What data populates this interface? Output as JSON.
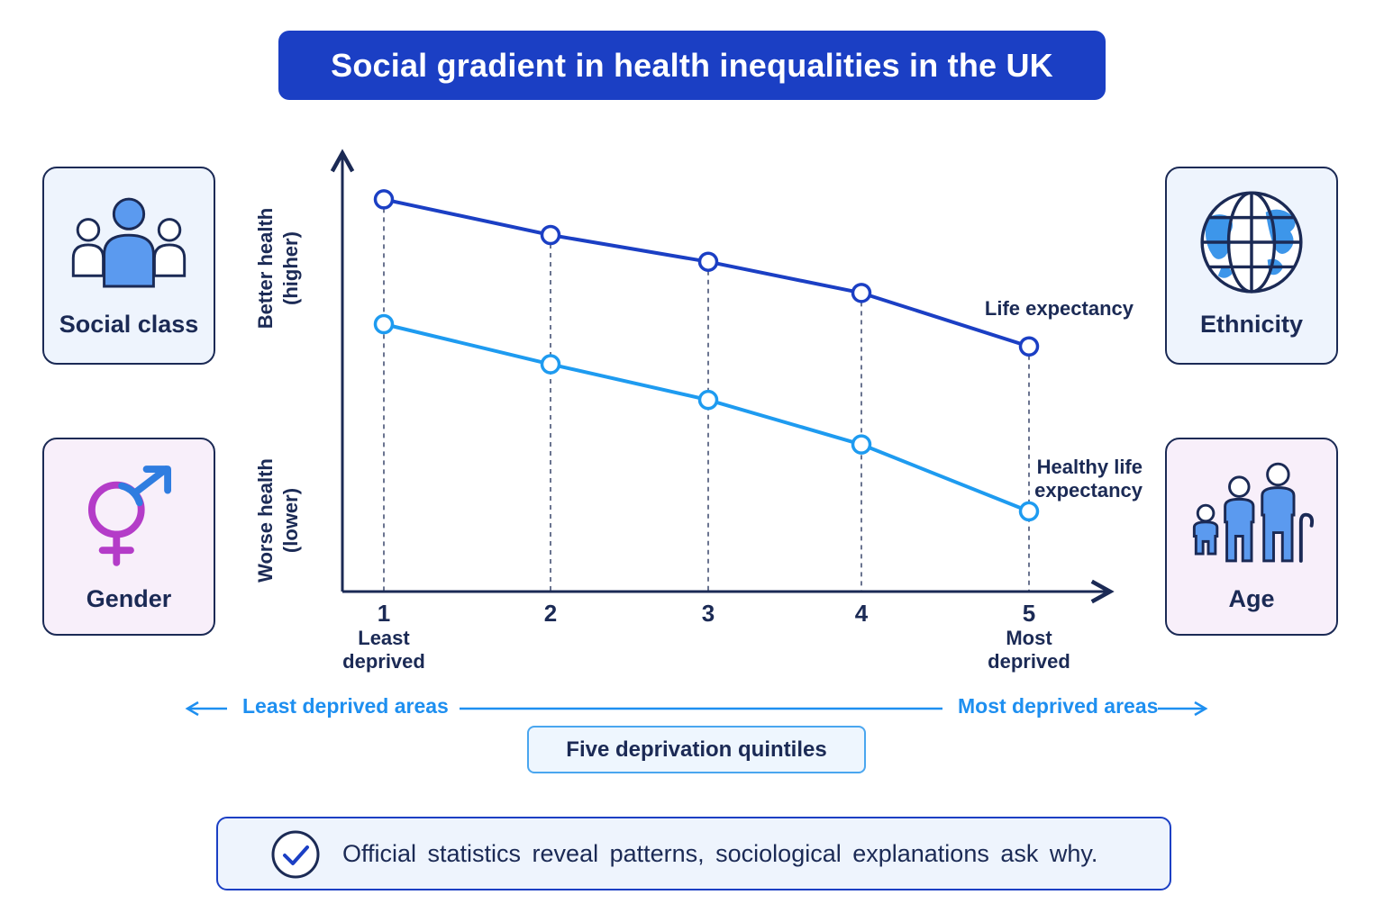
{
  "title": "Social gradient in health inequalities in the UK",
  "factors": {
    "social_class": "Social class",
    "ethnicity": "Ethnicity",
    "gender": "Gender",
    "age": "Age"
  },
  "chart_data": {
    "type": "line",
    "x": [
      1,
      2,
      3,
      4,
      5
    ],
    "tick_labels": [
      "1",
      "2",
      "3",
      "4",
      "5"
    ],
    "tick_sublabels": {
      "1": [
        "Least",
        "deprived"
      ],
      "5": [
        "Most",
        "deprived"
      ]
    },
    "y_top_label": [
      "Better health",
      "(higher)"
    ],
    "y_bottom_label": [
      "Worse health",
      "(lower)"
    ],
    "ylim": [
      0,
      100
    ],
    "grid": "vertical dashed lines at each quintile",
    "series": [
      {
        "name": "Life expectancy",
        "values": [
          88,
          80,
          74,
          67,
          55
        ],
        "color": "#1b3fc4"
      },
      {
        "name": "Healthy life expectancy",
        "values": [
          60,
          51,
          43,
          33,
          18
        ],
        "color": "#1e9bf0"
      }
    ]
  },
  "axis_footer": {
    "left": "Least deprived areas",
    "right": "Most deprived areas",
    "box": "Five deprivation quintiles"
  },
  "conclusion": "Official statistics reveal patterns, sociological explanations ask why.",
  "colors": {
    "primary": "#1b3fc4",
    "secondary": "#1e9bf0",
    "ink": "#1b2a55",
    "gender_female": "#b43cc8",
    "gender_male": "#2f7de0"
  }
}
